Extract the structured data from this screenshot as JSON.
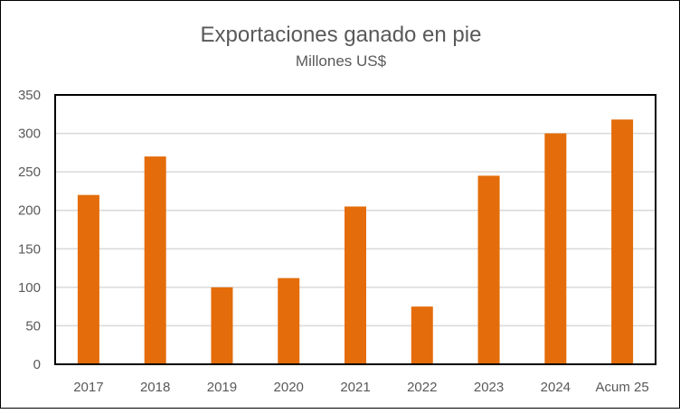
{
  "chart_data": {
    "type": "bar",
    "title": "Exportaciones ganado en pie",
    "subtitle": "Millones US$",
    "xlabel": "",
    "ylabel": "",
    "categories": [
      "2017",
      "2018",
      "2019",
      "2020",
      "2021",
      "2022",
      "2023",
      "2024",
      "Acum 25"
    ],
    "values": [
      220,
      270,
      100,
      112,
      205,
      75,
      245,
      300,
      318
    ],
    "ylim": [
      0,
      350
    ],
    "yticks": [
      0,
      50,
      100,
      150,
      200,
      250,
      300,
      350
    ],
    "grid": true,
    "legend": "none",
    "bar_color": "#E46C0A"
  }
}
